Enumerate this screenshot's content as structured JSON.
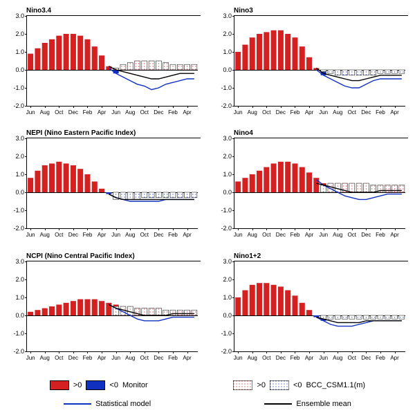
{
  "ylim": [
    -2.0,
    3.0
  ],
  "yticks": [
    -2.0,
    -1.0,
    0.0,
    1.0,
    2.0,
    3.0
  ],
  "ytick_labels": [
    "-2.0",
    "-1.0",
    "0.0",
    "1.0",
    "2.0",
    "3.0"
  ],
  "n_months": 24,
  "xtick_labels": [
    "Jun",
    "Aug",
    "Oct",
    "Dec",
    "Feb",
    "Apr",
    "Jun",
    "Aug",
    "Oct",
    "Dec",
    "Feb",
    "Apr"
  ],
  "xtick_positions": [
    0,
    2,
    4,
    6,
    8,
    10,
    12,
    14,
    16,
    18,
    20,
    22
  ],
  "colors": {
    "pos_solid": "#d42020",
    "neg_solid": "#1030c0",
    "pos_hatch": "#d42020",
    "neg_hatch": "#1030c0",
    "hatch_fill": "#ffffff",
    "stat_line": "#1030c0",
    "ens_line": "#000000",
    "axis": "#000000",
    "bg": "#ffffff"
  },
  "legend": {
    "monitor_pos": ">0",
    "monitor_neg": "<0",
    "monitor_label": "Monitor",
    "hatch_pos": ">0",
    "hatch_neg": "<0",
    "hatch_label": "BCC_CSM1.1(m)",
    "stat_label": "Statistical model",
    "ens_label": "Ensemble mean"
  },
  "panels": [
    {
      "title": "Nino3.4",
      "solid": [
        0.9,
        1.2,
        1.5,
        1.7,
        1.9,
        2.0,
        2.0,
        1.9,
        1.7,
        1.3,
        0.8,
        0.2,
        -0.2
      ],
      "hatch": [
        null,
        null,
        null,
        null,
        null,
        null,
        null,
        null,
        null,
        null,
        null,
        null,
        0.1,
        0.3,
        0.4,
        0.5,
        0.5,
        0.5,
        0.5,
        0.4,
        0.3,
        0.3,
        0.3,
        0.3
      ],
      "stat": [
        null,
        null,
        null,
        null,
        null,
        null,
        null,
        null,
        null,
        null,
        null,
        0.1,
        -0.2,
        -0.4,
        -0.6,
        -0.8,
        -0.9,
        -1.1,
        -1.0,
        -0.8,
        -0.7,
        -0.6,
        -0.5,
        -0.5
      ],
      "ens": [
        null,
        null,
        null,
        null,
        null,
        null,
        null,
        null,
        null,
        null,
        null,
        0.2,
        0.0,
        -0.1,
        -0.2,
        -0.3,
        -0.4,
        -0.5,
        -0.5,
        -0.4,
        -0.3,
        -0.2,
        -0.2,
        -0.2
      ]
    },
    {
      "title": "Nino3",
      "solid": [
        1.0,
        1.4,
        1.8,
        2.0,
        2.1,
        2.2,
        2.2,
        2.0,
        1.8,
        1.3,
        0.7,
        0.1,
        -0.3
      ],
      "hatch": [
        null,
        null,
        null,
        null,
        null,
        null,
        null,
        null,
        null,
        null,
        null,
        null,
        -0.1,
        -0.2,
        -0.3,
        -0.3,
        -0.3,
        -0.3,
        -0.3,
        -0.3,
        -0.2,
        -0.2,
        -0.2,
        -0.2
      ],
      "stat": [
        null,
        null,
        null,
        null,
        null,
        null,
        null,
        null,
        null,
        null,
        null,
        0.0,
        -0.3,
        -0.5,
        -0.7,
        -0.9,
        -1.0,
        -1.0,
        -0.8,
        -0.6,
        -0.5,
        -0.5,
        -0.5,
        -0.5
      ],
      "ens": [
        null,
        null,
        null,
        null,
        null,
        null,
        null,
        null,
        null,
        null,
        null,
        0.1,
        -0.2,
        -0.3,
        -0.4,
        -0.5,
        -0.6,
        -0.6,
        -0.5,
        -0.4,
        -0.3,
        -0.3,
        -0.3,
        -0.3
      ]
    },
    {
      "title": "NEPI (Nino Eastern Pacific Index)",
      "solid": [
        0.8,
        1.2,
        1.5,
        1.6,
        1.7,
        1.6,
        1.5,
        1.3,
        1.0,
        0.6,
        0.2,
        -0.1,
        -0.3
      ],
      "hatch": [
        null,
        null,
        null,
        null,
        null,
        null,
        null,
        null,
        null,
        null,
        null,
        null,
        -0.4,
        -0.4,
        -0.4,
        -0.4,
        -0.3,
        -0.3,
        -0.3,
        -0.3,
        -0.3,
        -0.3,
        -0.3,
        -0.3
      ],
      "stat": [
        null,
        null,
        null,
        null,
        null,
        null,
        null,
        null,
        null,
        null,
        null,
        -0.1,
        -0.3,
        -0.4,
        -0.5,
        -0.5,
        -0.5,
        -0.5,
        -0.5,
        -0.4,
        -0.4,
        -0.4,
        -0.4,
        -0.4
      ],
      "ens": [
        null,
        null,
        null,
        null,
        null,
        null,
        null,
        null,
        null,
        null,
        null,
        -0.1,
        -0.3,
        -0.4,
        -0.4,
        -0.4,
        -0.4,
        -0.4,
        -0.4,
        -0.4,
        -0.4,
        -0.4,
        -0.4,
        -0.4
      ]
    },
    {
      "title": "Nino4",
      "solid": [
        0.6,
        0.8,
        1.0,
        1.2,
        1.4,
        1.6,
        1.7,
        1.7,
        1.6,
        1.4,
        1.1,
        0.8,
        0.5
      ],
      "hatch": [
        null,
        null,
        null,
        null,
        null,
        null,
        null,
        null,
        null,
        null,
        null,
        null,
        0.4,
        0.5,
        0.5,
        0.5,
        0.5,
        0.5,
        0.5,
        0.4,
        0.4,
        0.4,
        0.4,
        0.4
      ],
      "stat": [
        null,
        null,
        null,
        null,
        null,
        null,
        null,
        null,
        null,
        null,
        null,
        0.7,
        0.4,
        0.2,
        0.0,
        -0.2,
        -0.3,
        -0.4,
        -0.4,
        -0.3,
        -0.2,
        -0.1,
        -0.1,
        -0.1
      ],
      "ens": [
        null,
        null,
        null,
        null,
        null,
        null,
        null,
        null,
        null,
        null,
        null,
        0.5,
        0.4,
        0.3,
        0.2,
        0.1,
        0.0,
        0.0,
        0.0,
        0.0,
        0.1,
        0.1,
        0.1,
        0.1
      ]
    },
    {
      "title": "NCPI (Nino Central Pacific Index)",
      "solid": [
        0.2,
        0.3,
        0.4,
        0.5,
        0.6,
        0.7,
        0.8,
        0.9,
        0.9,
        0.9,
        0.8,
        0.7,
        0.6
      ],
      "hatch": [
        null,
        null,
        null,
        null,
        null,
        null,
        null,
        null,
        null,
        null,
        null,
        null,
        0.5,
        0.5,
        0.5,
        0.4,
        0.4,
        0.4,
        0.4,
        0.3,
        0.3,
        0.3,
        0.3,
        0.3
      ],
      "stat": [
        null,
        null,
        null,
        null,
        null,
        null,
        null,
        null,
        null,
        null,
        null,
        0.6,
        0.4,
        0.2,
        0.0,
        -0.2,
        -0.3,
        -0.3,
        -0.3,
        -0.2,
        -0.1,
        -0.1,
        -0.1,
        -0.1
      ],
      "ens": [
        null,
        null,
        null,
        null,
        null,
        null,
        null,
        null,
        null,
        null,
        null,
        0.6,
        0.4,
        0.3,
        0.2,
        0.1,
        0.0,
        0.0,
        0.0,
        0.0,
        0.1,
        0.1,
        0.1,
        0.1
      ]
    },
    {
      "title": "Nino1+2",
      "solid": [
        1.0,
        1.4,
        1.7,
        1.8,
        1.8,
        1.7,
        1.6,
        1.4,
        1.1,
        0.7,
        0.3,
        -0.1,
        -0.3
      ],
      "hatch": [
        null,
        null,
        null,
        null,
        null,
        null,
        null,
        null,
        null,
        null,
        null,
        null,
        -0.2,
        -0.2,
        -0.2,
        -0.2,
        -0.2,
        -0.2,
        -0.2,
        -0.2,
        -0.2,
        -0.2,
        -0.2,
        -0.2
      ],
      "stat": [
        null,
        null,
        null,
        null,
        null,
        null,
        null,
        null,
        null,
        null,
        null,
        -0.1,
        -0.3,
        -0.5,
        -0.6,
        -0.6,
        -0.6,
        -0.5,
        -0.4,
        -0.3,
        -0.3,
        -0.3,
        -0.3,
        -0.3
      ],
      "ens": [
        null,
        null,
        null,
        null,
        null,
        null,
        null,
        null,
        null,
        null,
        null,
        -0.1,
        -0.2,
        -0.3,
        -0.4,
        -0.4,
        -0.4,
        -0.4,
        -0.3,
        -0.3,
        -0.3,
        -0.3,
        -0.3,
        -0.3
      ]
    }
  ]
}
